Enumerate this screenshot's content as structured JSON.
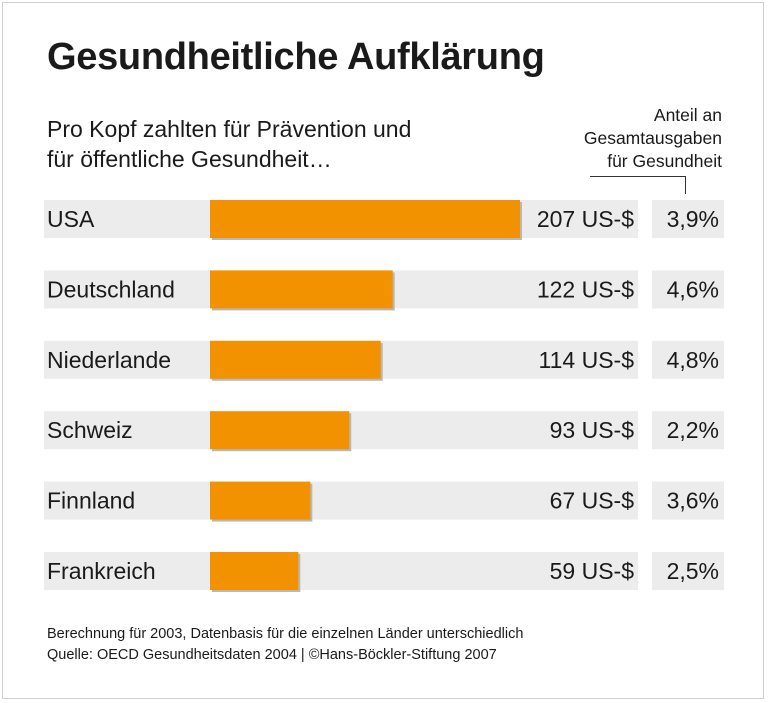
{
  "title": "Gesundheitliche Aufklärung",
  "subtitle_line1": "Pro Kopf zahlten für Prävention und",
  "subtitle_line2": "für öffentliche Gesundheit…",
  "share_header_line1": "Anteil an",
  "share_header_line2": "Gesamtausgaben",
  "share_header_line3": "für Gesundheit",
  "footer_line1": "Berechnung für 2003, Datenbasis für die einzelnen Länder unterschiedlich",
  "footer_line2": "Quelle: OECD Gesundheitsdaten 2004  | ©Hans-Böckler-Stiftung 2007",
  "colors": {
    "bar": "#F39200",
    "bar_shadow": "#b8b8b8",
    "row_background": "#ececec"
  },
  "chart_data": {
    "type": "bar",
    "orientation": "horizontal",
    "categories": [
      "USA",
      "Deutschland",
      "Niederlande",
      "Schweiz",
      "Finnland",
      "Frankreich"
    ],
    "values": [
      207,
      122,
      114,
      93,
      67,
      59
    ],
    "value_labels": [
      "207 US-$",
      "122 US-$",
      "114 US-$",
      "93 US-$",
      "67 US-$",
      "59 US-$"
    ],
    "share_labels": [
      "3,9%",
      "4,6%",
      "4,8%",
      "2,2%",
      "3,6%",
      "2,5%"
    ],
    "share_values": [
      3.9,
      4.6,
      4.8,
      2.2,
      3.6,
      2.5
    ],
    "unit": "US-$",
    "xlim": [
      0,
      207
    ],
    "grid": false,
    "legend": "none"
  }
}
